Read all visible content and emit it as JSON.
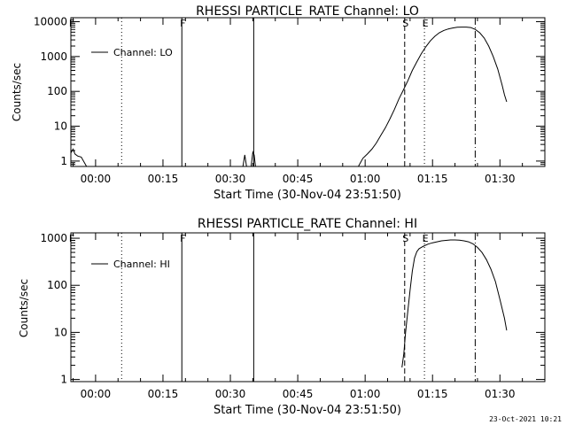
{
  "footer": {
    "timestamp": "23-Oct-2021 10:21"
  },
  "chart_data": [
    {
      "type": "line",
      "title": "RHESSI PARTICLE_RATE Channel: LO",
      "xlabel": "Start Time (30-Nov-04 23:51:50)",
      "ylabel": "Counts/sec",
      "yscale": "log",
      "xlim_minutes_after_start": [
        -5.5,
        100
      ],
      "ylim": [
        0.7,
        13000
      ],
      "xticks": [
        "00:00",
        "00:15",
        "00:30",
        "00:45",
        "01:00",
        "01:15",
        "01:30"
      ],
      "yticks": [
        "1",
        "10",
        "100",
        "1000",
        "10000"
      ],
      "legend": {
        "label": "Channel: LO",
        "position": "top-left"
      },
      "series": [
        {
          "name": "Channel: LO",
          "x": [
            -5.5,
            -5.0,
            -4.6,
            -4.0,
            -3.2,
            -2.0,
            0,
            10,
            18,
            28,
            32.8,
            33.2,
            33.6,
            34.6,
            35.0,
            35.3,
            35.6,
            36.0,
            37,
            45,
            55,
            58.5,
            59.5,
            60.5,
            61.5,
            62.5,
            63.5,
            64.5,
            65.5,
            66.5,
            67.5,
            68.5,
            69.5,
            70.5,
            71.5,
            72.5,
            73.5,
            74.5,
            75.5,
            76.5,
            77.5,
            78.5,
            79.5,
            80.5,
            81.5,
            82.5,
            83.5,
            84.5,
            85.5,
            86.5,
            87.5,
            88.5,
            89.5,
            90.5,
            91.0,
            91.5
          ],
          "y": [
            1.7,
            2.2,
            1.6,
            1.4,
            1.3,
            0.7,
            0.7,
            0.7,
            0.7,
            0.7,
            0.7,
            1.5,
            0.7,
            0.7,
            1.8,
            1.5,
            0.7,
            0.7,
            0.7,
            0.7,
            0.7,
            0.7,
            1.2,
            1.6,
            2.2,
            3.3,
            5.5,
            9,
            16,
            30,
            60,
            110,
            200,
            400,
            700,
            1200,
            1900,
            2800,
            3800,
            4800,
            5600,
            6200,
            6600,
            6900,
            7000,
            7000,
            6800,
            6000,
            4800,
            3400,
            2000,
            1000,
            440,
            150,
            80,
            50
          ]
        }
      ],
      "annotations": [
        {
          "label": "F",
          "x": -5.5,
          "style": "marker"
        },
        {
          "label": "",
          "x": 5.8,
          "style": "dotted"
        },
        {
          "label": "F",
          "x": 19.2,
          "style": "solid"
        },
        {
          "label": "",
          "x": 35.2,
          "style": "solid"
        },
        {
          "label": "S",
          "x": 68.8,
          "style": "dashed"
        },
        {
          "label": "E",
          "x": 73.2,
          "style": "dotted"
        },
        {
          "label": "",
          "x": 84.5,
          "style": "dashdot"
        }
      ]
    },
    {
      "type": "line",
      "title": "RHESSI PARTICLE_RATE Channel: HI",
      "xlabel": "Start Time (30-Nov-04 23:51:50)",
      "ylabel": "Counts/sec",
      "yscale": "log",
      "xlim_minutes_after_start": [
        -5.5,
        100
      ],
      "ylim": [
        0.9,
        1300
      ],
      "xticks": [
        "00:00",
        "00:15",
        "00:30",
        "00:45",
        "01:00",
        "01:15",
        "01:30"
      ],
      "yticks": [
        "1",
        "10",
        "100",
        "1000"
      ],
      "legend": {
        "label": "Channel: HI",
        "position": "top-left"
      },
      "series": [
        {
          "name": "Channel: HI",
          "x": [
            68.2,
            68.6,
            69.0,
            69.5,
            70.0,
            70.5,
            71.0,
            71.5,
            72.0,
            72.5,
            73.0,
            74.0,
            75.0,
            76.0,
            77.0,
            78.0,
            79.0,
            80.0,
            81.0,
            82.0,
            83.0,
            84.0,
            85.0,
            86.0,
            87.0,
            88.0,
            89.0,
            90.0,
            91.0,
            91.5
          ],
          "y": [
            1.8,
            3.5,
            10,
            28,
            80,
            200,
            380,
            520,
            600,
            640,
            680,
            750,
            800,
            840,
            880,
            900,
            920,
            920,
            910,
            880,
            840,
            760,
            640,
            500,
            350,
            220,
            120,
            50,
            20,
            11
          ]
        }
      ],
      "annotations": [
        {
          "label": "F",
          "x": -5.5,
          "style": "marker"
        },
        {
          "label": "",
          "x": 5.8,
          "style": "dotted"
        },
        {
          "label": "F",
          "x": 19.2,
          "style": "solid"
        },
        {
          "label": "",
          "x": 35.2,
          "style": "solid"
        },
        {
          "label": "S",
          "x": 68.8,
          "style": "dashed"
        },
        {
          "label": "E",
          "x": 73.2,
          "style": "dotted"
        },
        {
          "label": "",
          "x": 84.5,
          "style": "dashdot"
        }
      ]
    }
  ]
}
